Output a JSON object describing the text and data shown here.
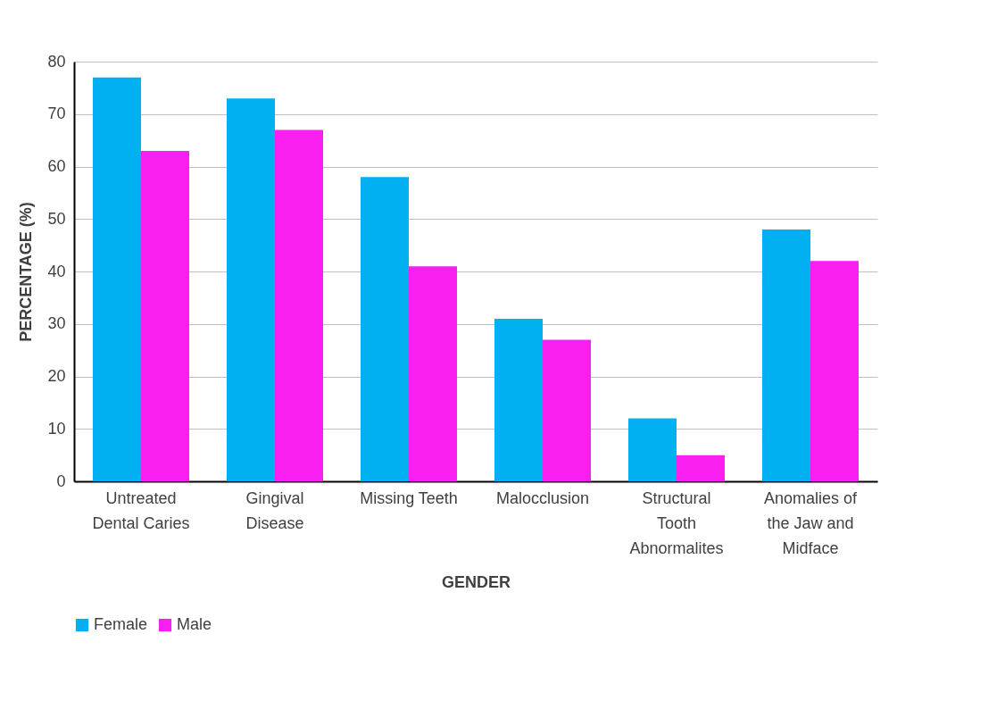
{
  "chart_data": {
    "type": "bar",
    "xlabel": "GENDER",
    "ylabel": "PERCENTAGE (%)",
    "categories": [
      "Untreated Dental Caries",
      "Gingival Disease",
      "Missing Teeth",
      "Malocclusion",
      "Structural Tooth Abnormalites",
      "Anomalies of the Jaw and Midface"
    ],
    "series": [
      {
        "name": "Female",
        "color": "#00b0f0",
        "values": [
          77,
          73,
          58,
          31,
          12,
          48
        ]
      },
      {
        "name": "Male",
        "color": "#f81ff0",
        "values": [
          63,
          67,
          41,
          27,
          5,
          42
        ]
      }
    ],
    "ylim": [
      0,
      80
    ],
    "yticks": [
      0,
      10,
      20,
      30,
      40,
      50,
      60,
      70,
      80
    ],
    "grid": "y",
    "legend": "bottom"
  }
}
